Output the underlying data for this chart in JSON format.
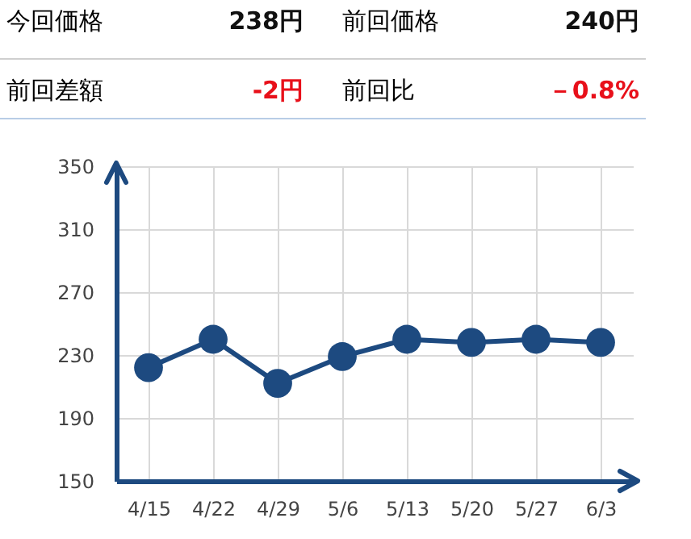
{
  "chart_data": {
    "type": "line",
    "annotations": [
      "今回価格",
      "238円",
      "前回価格",
      "240円",
      "前回差額",
      "-2円",
      "前回比",
      "－0.8%"
    ],
    "categories": [
      "4/15",
      "4/22",
      "4/29",
      "5/6",
      "5/13",
      "5/20",
      "5/27",
      "6/3"
    ],
    "series": [
      {
        "color": "#1d4a80",
        "values": [
          222,
          240,
          212,
          229,
          240,
          238,
          240,
          238
        ]
      }
    ],
    "ylim": [
      150,
      350
    ],
    "yticks": [
      150,
      190,
      230,
      270,
      310,
      350
    ],
    "grid": true,
    "marker": "circle",
    "line_style": "solid"
  }
}
